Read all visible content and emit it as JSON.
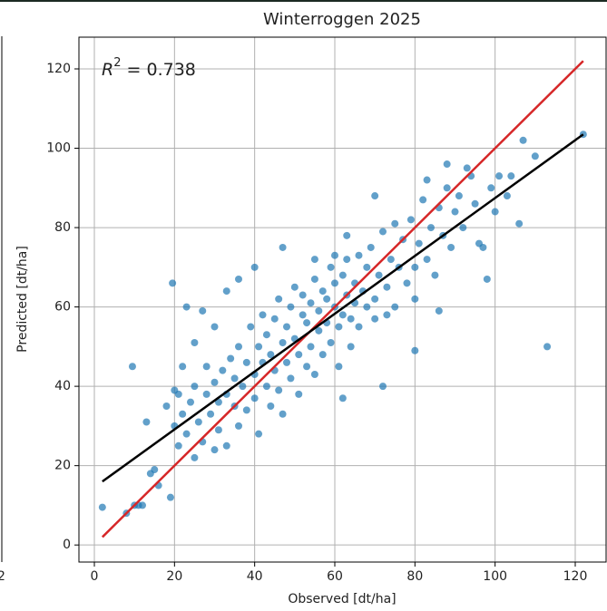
{
  "chart_data": {
    "type": "scatter",
    "title": "Winterroggen 2025",
    "xlabel": "Observed [dt/ha]",
    "ylabel": "Predicted [dt/ha]",
    "annotation": {
      "var": "R",
      "sup": "2",
      "rest": " = 0.738"
    },
    "left_panel_tick_label": "2",
    "xlim": [
      -3.85,
      127.7
    ],
    "ylim": [
      -4.3,
      128
    ],
    "xticks": [
      0,
      20,
      40,
      60,
      80,
      100,
      120
    ],
    "yticks": [
      0,
      20,
      40,
      60,
      80,
      100,
      120
    ],
    "grid": true,
    "points": {
      "color": "#1f77b4",
      "x": [
        2,
        8,
        9.5,
        10,
        11,
        12,
        13,
        14,
        15,
        16,
        18,
        19,
        19.5,
        20,
        21,
        22,
        23,
        25,
        27,
        30,
        33,
        36,
        40,
        47,
        55,
        60,
        63,
        70,
        75,
        80,
        72,
        62,
        113,
        122,
        107,
        110,
        106,
        101,
        98,
        97,
        93,
        88,
        86,
        83,
        20,
        21,
        22,
        23,
        24,
        25,
        25,
        26,
        27,
        28,
        28,
        29,
        30,
        30,
        31,
        31,
        32,
        33,
        33,
        34,
        35,
        35,
        36,
        36,
        37,
        38,
        38,
        39,
        40,
        40,
        41,
        41,
        42,
        42,
        43,
        43,
        44,
        44,
        45,
        45,
        46,
        46,
        47,
        47,
        48,
        48,
        49,
        49,
        50,
        50,
        51,
        51,
        52,
        52,
        53,
        53,
        54,
        54,
        55,
        55,
        56,
        56,
        57,
        57,
        58,
        58,
        59,
        59,
        60,
        60,
        61,
        61,
        62,
        62,
        63,
        63,
        64,
        64,
        65,
        65,
        66,
        66,
        67,
        68,
        68,
        69,
        70,
        70,
        71,
        72,
        73,
        73,
        74,
        75,
        76,
        77,
        78,
        79,
        80,
        80,
        81,
        82,
        83,
        84,
        85,
        86,
        87,
        88,
        89,
        90,
        91,
        92,
        94,
        95,
        96,
        99,
        100,
        103,
        104
      ],
      "values": [
        9.5,
        8,
        45,
        10,
        10,
        10,
        31,
        18,
        19,
        15,
        35,
        12,
        66,
        39,
        38,
        45,
        60,
        51,
        59,
        55,
        64,
        67,
        70,
        75,
        72,
        73,
        78,
        88,
        81,
        49,
        40,
        37,
        50,
        103.5,
        102,
        98,
        81,
        93,
        67,
        75,
        95,
        96,
        59,
        92,
        30,
        25,
        33,
        28,
        36,
        22,
        40,
        31,
        26,
        38,
        45,
        33,
        24,
        41,
        36,
        29,
        44,
        38,
        25,
        47,
        35,
        42,
        30,
        50,
        40,
        46,
        34,
        55,
        43,
        37,
        50,
        28,
        46,
        58,
        40,
        53,
        35,
        48,
        57,
        44,
        39,
        62,
        51,
        33,
        55,
        46,
        60,
        42,
        52,
        65,
        48,
        38,
        58,
        63,
        45,
        56,
        61,
        50,
        67,
        43,
        59,
        54,
        64,
        48,
        62,
        56,
        70,
        51,
        60,
        66,
        55,
        45,
        68,
        58,
        63,
        72,
        57,
        50,
        66,
        61,
        73,
        55,
        64,
        60,
        70,
        75,
        62,
        57,
        68,
        79,
        65,
        58,
        72,
        60,
        70,
        77,
        66,
        82,
        70,
        62,
        76,
        87,
        72,
        80,
        68,
        85,
        78,
        90,
        75,
        84,
        88,
        80,
        93,
        86,
        76,
        90,
        84,
        88,
        93
      ]
    },
    "lines": [
      {
        "color": "#d62728",
        "x": [
          2,
          122
        ],
        "values": [
          2,
          122
        ]
      },
      {
        "color": "#000000",
        "x": [
          2,
          122
        ],
        "values": [
          16,
          103.5
        ]
      }
    ]
  }
}
